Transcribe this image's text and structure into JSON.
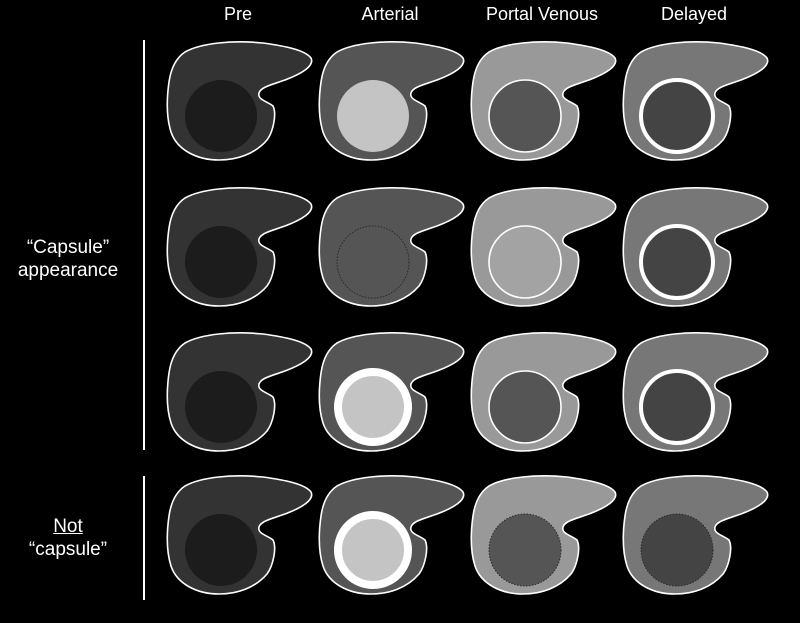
{
  "columns": [
    "Pre",
    "Arterial",
    "Portal Venous",
    "Delayed"
  ],
  "groups": [
    {
      "line1": "“Capsule”",
      "line2": "appearance",
      "underline_line1": false
    },
    {
      "line1": "Not",
      "line2": "“capsule”",
      "underline_line1": true
    }
  ],
  "colors": {
    "background": "#000000",
    "outline": "#ffffff",
    "liver_pre": "#333333",
    "liver_arterial": "#555555",
    "liver_portal": "#999999",
    "liver_delayed": "#777777",
    "lesion_dark": "#1c1c1c",
    "lesion_mid": "#555555",
    "lesion_light": "#c4c4c4",
    "lesion_portal_light": "#a3a3a3",
    "lesion_delayed": "#444444"
  },
  "rows": [
    {
      "cells": [
        {
          "liver": "liver_pre",
          "lesion": "lesion_dark",
          "ring": "none"
        },
        {
          "liver": "liver_arterial",
          "lesion": "lesion_light",
          "ring": "none"
        },
        {
          "liver": "liver_portal",
          "lesion": "lesion_mid",
          "ring": "thin"
        },
        {
          "liver": "liver_delayed",
          "lesion": "lesion_delayed",
          "ring": "thick"
        }
      ]
    },
    {
      "cells": [
        {
          "liver": "liver_pre",
          "lesion": "lesion_dark",
          "ring": "none"
        },
        {
          "liver": "liver_arterial",
          "lesion": "lesion_mid",
          "ring": "dotted"
        },
        {
          "liver": "liver_portal",
          "lesion": "lesion_portal_light",
          "ring": "thin"
        },
        {
          "liver": "liver_delayed",
          "lesion": "lesion_delayed",
          "ring": "thick"
        }
      ]
    },
    {
      "cells": [
        {
          "liver": "liver_pre",
          "lesion": "lesion_dark",
          "ring": "none"
        },
        {
          "liver": "liver_arterial",
          "lesion": "lesion_light",
          "ring": "heavy"
        },
        {
          "liver": "liver_portal",
          "lesion": "lesion_mid",
          "ring": "thin"
        },
        {
          "liver": "liver_delayed",
          "lesion": "lesion_delayed",
          "ring": "thick"
        }
      ]
    },
    {
      "cells": [
        {
          "liver": "liver_pre",
          "lesion": "lesion_dark",
          "ring": "none"
        },
        {
          "liver": "liver_arterial",
          "lesion": "lesion_light",
          "ring": "heavy"
        },
        {
          "liver": "liver_portal",
          "lesion": "lesion_mid",
          "ring": "dotted"
        },
        {
          "liver": "liver_delayed",
          "lesion": "lesion_delayed",
          "ring": "dotted"
        }
      ]
    }
  ]
}
